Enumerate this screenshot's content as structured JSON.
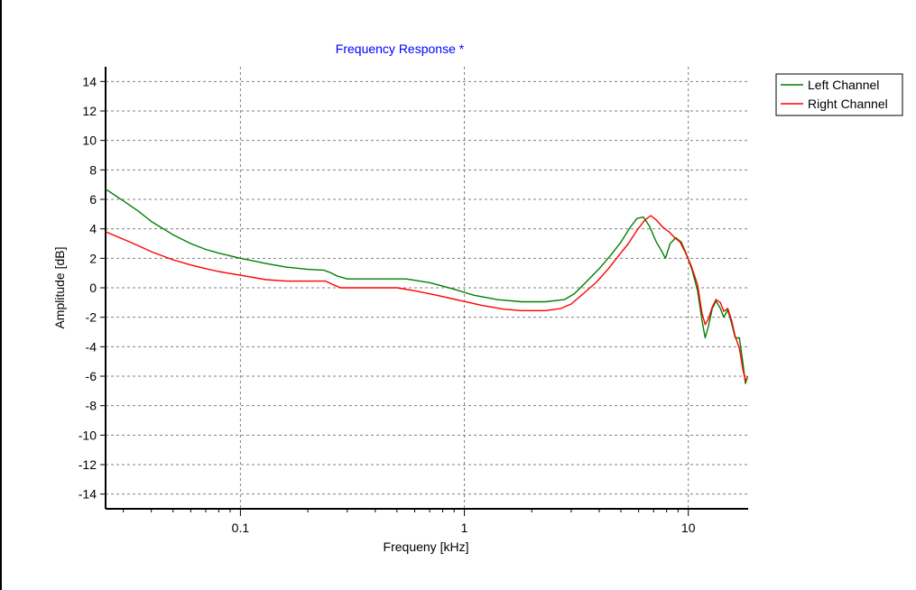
{
  "chart_data": {
    "type": "line",
    "title": "Frequency Response *",
    "xlabel": "Frequeny [kHz]",
    "ylabel": "Amplitude [dB]",
    "x_scale": "log",
    "xlim": [
      0.025,
      18.5
    ],
    "ylim": [
      -15,
      15
    ],
    "x_ticks": [
      {
        "value": 0.1,
        "label": "0.1"
      },
      {
        "value": 1,
        "label": "1"
      },
      {
        "value": 10,
        "label": "10"
      }
    ],
    "y_ticks": [
      14,
      12,
      10,
      8,
      6,
      4,
      2,
      0,
      -2,
      -4,
      -6,
      -8,
      -10,
      -12,
      -14
    ],
    "grid": true,
    "legend_position": "top-right, outside plot",
    "colors": {
      "title": "#0000ff",
      "grid": "#808080",
      "axis": "#000000"
    },
    "series": [
      {
        "name": "Left Channel",
        "color": "#008000",
        "points": [
          [
            0.025,
            6.7
          ],
          [
            0.03,
            5.9
          ],
          [
            0.035,
            5.2
          ],
          [
            0.04,
            4.5
          ],
          [
            0.05,
            3.6
          ],
          [
            0.06,
            3.0
          ],
          [
            0.07,
            2.6
          ],
          [
            0.08,
            2.35
          ],
          [
            0.1,
            2.0
          ],
          [
            0.13,
            1.65
          ],
          [
            0.16,
            1.4
          ],
          [
            0.2,
            1.25
          ],
          [
            0.235,
            1.2
          ],
          [
            0.25,
            1.05
          ],
          [
            0.27,
            0.8
          ],
          [
            0.3,
            0.6
          ],
          [
            0.4,
            0.6
          ],
          [
            0.55,
            0.6
          ],
          [
            0.7,
            0.35
          ],
          [
            0.9,
            -0.1
          ],
          [
            1.1,
            -0.5
          ],
          [
            1.4,
            -0.8
          ],
          [
            1.8,
            -0.95
          ],
          [
            2.3,
            -0.95
          ],
          [
            2.8,
            -0.8
          ],
          [
            3.1,
            -0.4
          ],
          [
            3.5,
            0.4
          ],
          [
            4.0,
            1.3
          ],
          [
            4.5,
            2.2
          ],
          [
            5.0,
            3.1
          ],
          [
            5.5,
            4.1
          ],
          [
            5.9,
            4.7
          ],
          [
            6.3,
            4.8
          ],
          [
            6.7,
            4.2
          ],
          [
            7.2,
            3.1
          ],
          [
            7.6,
            2.5
          ],
          [
            7.9,
            2.0
          ],
          [
            8.3,
            3.0
          ],
          [
            8.8,
            3.4
          ],
          [
            9.3,
            3.1
          ],
          [
            9.8,
            2.3
          ],
          [
            10.4,
            1.2
          ],
          [
            11.0,
            -0.2
          ],
          [
            11.5,
            -2.2
          ],
          [
            11.9,
            -3.4
          ],
          [
            12.3,
            -2.6
          ],
          [
            12.8,
            -1.4
          ],
          [
            13.3,
            -0.9
          ],
          [
            13.9,
            -1.4
          ],
          [
            14.4,
            -2.0
          ],
          [
            15.0,
            -1.5
          ],
          [
            15.6,
            -2.4
          ],
          [
            16.2,
            -3.4
          ],
          [
            16.9,
            -3.4
          ],
          [
            17.5,
            -5.0
          ],
          [
            18.0,
            -6.5
          ],
          [
            18.4,
            -6.0
          ]
        ]
      },
      {
        "name": "Right Channel",
        "color": "#ff0000",
        "points": [
          [
            0.025,
            3.8
          ],
          [
            0.03,
            3.3
          ],
          [
            0.035,
            2.85
          ],
          [
            0.04,
            2.45
          ],
          [
            0.05,
            1.9
          ],
          [
            0.06,
            1.55
          ],
          [
            0.07,
            1.3
          ],
          [
            0.08,
            1.1
          ],
          [
            0.1,
            0.85
          ],
          [
            0.13,
            0.55
          ],
          [
            0.16,
            0.45
          ],
          [
            0.2,
            0.45
          ],
          [
            0.24,
            0.45
          ],
          [
            0.26,
            0.2
          ],
          [
            0.28,
            0.0
          ],
          [
            0.35,
            0.0
          ],
          [
            0.5,
            0.0
          ],
          [
            0.6,
            -0.2
          ],
          [
            0.75,
            -0.5
          ],
          [
            0.95,
            -0.85
          ],
          [
            1.2,
            -1.2
          ],
          [
            1.5,
            -1.45
          ],
          [
            1.8,
            -1.55
          ],
          [
            2.3,
            -1.55
          ],
          [
            2.7,
            -1.4
          ],
          [
            3.0,
            -1.1
          ],
          [
            3.4,
            -0.4
          ],
          [
            3.9,
            0.4
          ],
          [
            4.4,
            1.3
          ],
          [
            4.9,
            2.2
          ],
          [
            5.4,
            3.0
          ],
          [
            5.9,
            3.9
          ],
          [
            6.4,
            4.6
          ],
          [
            6.8,
            4.9
          ],
          [
            7.2,
            4.6
          ],
          [
            7.7,
            4.1
          ],
          [
            8.2,
            3.8
          ],
          [
            8.7,
            3.4
          ],
          [
            9.2,
            3.1
          ],
          [
            9.7,
            2.4
          ],
          [
            10.3,
            1.5
          ],
          [
            11.0,
            0.2
          ],
          [
            11.5,
            -1.7
          ],
          [
            11.9,
            -2.5
          ],
          [
            12.3,
            -2.1
          ],
          [
            12.8,
            -1.3
          ],
          [
            13.3,
            -0.8
          ],
          [
            13.9,
            -1.0
          ],
          [
            14.4,
            -1.6
          ],
          [
            15.0,
            -1.4
          ],
          [
            15.6,
            -2.2
          ],
          [
            16.2,
            -3.3
          ],
          [
            16.9,
            -4.1
          ],
          [
            17.5,
            -5.5
          ],
          [
            18.0,
            -6.3
          ],
          [
            18.4,
            -6.1
          ]
        ]
      }
    ]
  }
}
